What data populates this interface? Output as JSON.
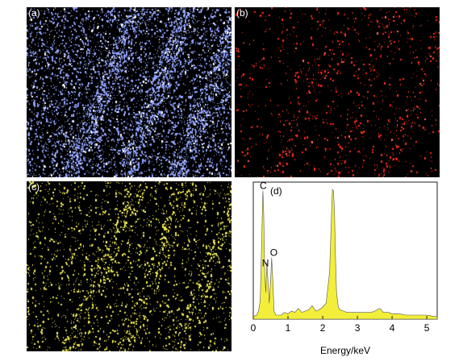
{
  "panels": {
    "a": {
      "label": "(a)",
      "color": "#8fa2ff",
      "highlight": "#ffffff"
    },
    "b": {
      "label": "(b)",
      "color": "#ff2a1a",
      "highlight": "#ff6a5a"
    },
    "c": {
      "label": "(c)",
      "color": "#e8e24a",
      "highlight": "#fffb8a"
    },
    "d": {
      "label": "(d)"
    }
  },
  "chart_data": {
    "type": "area",
    "xlabel": "Energy/keV",
    "ylabel": "",
    "xlim": [
      0,
      5.3
    ],
    "ylim": [
      0,
      1
    ],
    "xticks": [
      "0",
      "1",
      "2",
      "3",
      "4",
      "5"
    ],
    "fill_color": "#f2ee3a",
    "peaks": [
      {
        "label": "C",
        "x": 0.28,
        "y": 0.96
      },
      {
        "label": "N",
        "x": 0.39,
        "y": 0.42
      },
      {
        "label": "O",
        "x": 0.53,
        "y": 0.46
      }
    ],
    "series": [
      {
        "x": [
          0.0,
          0.1,
          0.15,
          0.2,
          0.24,
          0.27,
          0.28,
          0.3,
          0.33,
          0.36,
          0.39,
          0.42,
          0.46,
          0.5,
          0.53,
          0.56,
          0.6,
          0.65,
          0.7,
          0.8,
          0.9,
          1.0,
          1.1,
          1.2,
          1.3,
          1.4,
          1.5,
          1.6,
          1.7,
          1.8,
          1.9,
          2.0,
          2.1,
          2.2,
          2.25,
          2.28,
          2.31,
          2.34,
          2.37,
          2.4,
          2.45,
          2.5,
          2.6,
          2.7,
          2.8,
          3.0,
          3.2,
          3.4,
          3.5,
          3.65,
          3.75,
          3.9,
          4.0,
          4.2,
          4.4,
          4.6,
          4.8,
          5.0,
          5.2,
          5.3
        ],
        "values": [
          0.02,
          0.03,
          0.06,
          0.14,
          0.55,
          0.9,
          0.96,
          0.8,
          0.35,
          0.2,
          0.42,
          0.3,
          0.12,
          0.3,
          0.46,
          0.3,
          0.06,
          0.03,
          0.03,
          0.03,
          0.05,
          0.04,
          0.06,
          0.05,
          0.08,
          0.05,
          0.06,
          0.07,
          0.1,
          0.06,
          0.07,
          0.09,
          0.12,
          0.35,
          0.75,
          0.97,
          0.96,
          0.8,
          0.45,
          0.2,
          0.09,
          0.07,
          0.06,
          0.05,
          0.05,
          0.05,
          0.05,
          0.05,
          0.06,
          0.08,
          0.05,
          0.05,
          0.04,
          0.04,
          0.03,
          0.03,
          0.03,
          0.03,
          0.02,
          0.02
        ]
      }
    ]
  }
}
